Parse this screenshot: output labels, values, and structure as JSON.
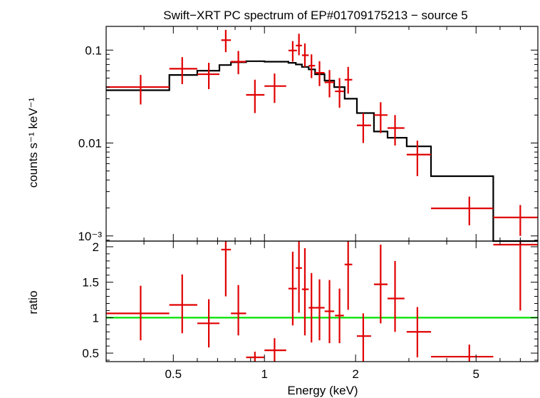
{
  "chart_data": [
    {
      "type": "scatter",
      "title": "Swift−XRT PC spectrum of EP#01709175213 − source 5",
      "xlabel": "Energy (keV)",
      "ylabel": "counts s⁻¹ keV⁻¹",
      "xscale": "log",
      "yscale": "log",
      "xlim": [
        0.3,
        8.0
      ],
      "ylim": [
        0.00088,
        0.18
      ],
      "yticks": [
        {
          "value": 0.1,
          "label": "0.1"
        },
        {
          "value": 0.01,
          "label": "0.01"
        },
        {
          "value": 0.001,
          "label": "10⁻³"
        }
      ],
      "series": [
        {
          "name": "data",
          "color": "#e00000",
          "points": [
            {
              "x": 0.39,
              "xlo": 0.3,
              "xhi": 0.485,
              "y": 0.04,
              "ylo": 0.026,
              "yhi": 0.054
            },
            {
              "x": 0.535,
              "xlo": 0.485,
              "xhi": 0.6,
              "y": 0.063,
              "ylo": 0.043,
              "yhi": 0.084
            },
            {
              "x": 0.655,
              "xlo": 0.6,
              "xhi": 0.71,
              "y": 0.055,
              "ylo": 0.038,
              "yhi": 0.073
            },
            {
              "x": 0.745,
              "xlo": 0.72,
              "xhi": 0.775,
              "y": 0.128,
              "ylo": 0.095,
              "yhi": 0.165
            },
            {
              "x": 0.82,
              "xlo": 0.775,
              "xhi": 0.87,
              "y": 0.075,
              "ylo": 0.055,
              "yhi": 0.098
            },
            {
              "x": 0.93,
              "xlo": 0.87,
              "xhi": 1.0,
              "y": 0.033,
              "ylo": 0.021,
              "yhi": 0.048
            },
            {
              "x": 1.08,
              "xlo": 1.0,
              "xhi": 1.18,
              "y": 0.041,
              "ylo": 0.027,
              "yhi": 0.056
            },
            {
              "x": 1.24,
              "xlo": 1.2,
              "xhi": 1.28,
              "y": 0.099,
              "ylo": 0.075,
              "yhi": 0.125
            },
            {
              "x": 1.3,
              "xlo": 1.27,
              "xhi": 1.33,
              "y": 0.112,
              "ylo": 0.088,
              "yhi": 0.15
            },
            {
              "x": 1.36,
              "xlo": 1.33,
              "xhi": 1.4,
              "y": 0.088,
              "ylo": 0.066,
              "yhi": 0.118
            },
            {
              "x": 1.43,
              "xlo": 1.4,
              "xhi": 1.47,
              "y": 0.068,
              "ylo": 0.05,
              "yhi": 0.09
            },
            {
              "x": 1.52,
              "xlo": 1.47,
              "xhi": 1.58,
              "y": 0.057,
              "ylo": 0.041,
              "yhi": 0.076
            },
            {
              "x": 1.64,
              "xlo": 1.58,
              "xhi": 1.7,
              "y": 0.045,
              "ylo": 0.031,
              "yhi": 0.061
            },
            {
              "x": 1.77,
              "xlo": 1.71,
              "xhi": 1.83,
              "y": 0.036,
              "ylo": 0.024,
              "yhi": 0.05
            },
            {
              "x": 1.89,
              "xlo": 1.84,
              "xhi": 1.95,
              "y": 0.048,
              "ylo": 0.034,
              "yhi": 0.066
            },
            {
              "x": 2.12,
              "xlo": 2.02,
              "xhi": 2.25,
              "y": 0.0155,
              "ylo": 0.01,
              "yhi": 0.021
            },
            {
              "x": 2.42,
              "xlo": 2.3,
              "xhi": 2.55,
              "y": 0.02,
              "ylo": 0.0128,
              "yhi": 0.0275
            },
            {
              "x": 2.7,
              "xlo": 2.55,
              "xhi": 2.9,
              "y": 0.0145,
              "ylo": 0.0094,
              "yhi": 0.02
            },
            {
              "x": 3.2,
              "xlo": 2.95,
              "xhi": 3.55,
              "y": 0.0075,
              "ylo": 0.0044,
              "yhi": 0.0106
            },
            {
              "x": 4.75,
              "xlo": 3.55,
              "xhi": 5.7,
              "y": 0.00198,
              "ylo": 0.0013,
              "yhi": 0.00265
            },
            {
              "x": 7.0,
              "xlo": 5.7,
              "xhi": 8.0,
              "y": 0.00158,
              "ylo": 0.001,
              "yhi": 0.00215
            }
          ]
        },
        {
          "name": "model",
          "color": "#000000",
          "step": true,
          "edges": [
            0.3,
            0.485,
            0.6,
            0.71,
            0.775,
            0.87,
            1.0,
            1.2,
            1.27,
            1.33,
            1.4,
            1.47,
            1.58,
            1.7,
            1.84,
            2.02,
            2.3,
            2.55,
            2.95,
            3.55,
            5.7,
            8.0
          ],
          "values": [
            0.037,
            0.054,
            0.06,
            0.069,
            0.074,
            0.076,
            0.075,
            0.073,
            0.07,
            0.066,
            0.062,
            0.055,
            0.047,
            0.04,
            0.03,
            0.021,
            0.0133,
            0.0114,
            0.0092,
            0.0044,
            0.00085
          ]
        }
      ]
    },
    {
      "type": "scatter",
      "title": "",
      "xlabel": "Energy (keV)",
      "ylabel": "ratio",
      "xscale": "log",
      "yscale": "linear",
      "xlim": [
        0.3,
        8.0
      ],
      "ylim": [
        0.38,
        2.08
      ],
      "yticks": [
        {
          "value": 0.5,
          "label": "0.5"
        },
        {
          "value": 1,
          "label": "1"
        },
        {
          "value": 1.5,
          "label": "1.5"
        },
        {
          "value": 2,
          "label": "2"
        }
      ],
      "xticks": [
        {
          "value": 0.5,
          "label": "0.5"
        },
        {
          "value": 1,
          "label": "1"
        },
        {
          "value": 2,
          "label": "2"
        },
        {
          "value": 5,
          "label": "5"
        }
      ],
      "reference_line": {
        "y": 1,
        "color": "#00e000"
      },
      "series": [
        {
          "name": "ratio",
          "color": "#e00000",
          "points": [
            {
              "x": 0.39,
              "xlo": 0.3,
              "xhi": 0.485,
              "y": 1.06,
              "ylo": 0.68,
              "yhi": 1.45
            },
            {
              "x": 0.535,
              "xlo": 0.485,
              "xhi": 0.6,
              "y": 1.18,
              "ylo": 0.78,
              "yhi": 1.61
            },
            {
              "x": 0.655,
              "xlo": 0.6,
              "xhi": 0.71,
              "y": 0.92,
              "ylo": 0.58,
              "yhi": 1.26
            },
            {
              "x": 0.745,
              "xlo": 0.72,
              "xhi": 0.775,
              "y": 1.96,
              "ylo": 1.3,
              "yhi": 2.08
            },
            {
              "x": 0.82,
              "xlo": 0.775,
              "xhi": 0.87,
              "y": 1.06,
              "ylo": 0.75,
              "yhi": 1.46
            },
            {
              "x": 0.93,
              "xlo": 0.87,
              "xhi": 1.0,
              "y": 0.44,
              "ylo": 0.38,
              "yhi": 0.52
            },
            {
              "x": 1.08,
              "xlo": 1.0,
              "xhi": 1.18,
              "y": 0.54,
              "ylo": 0.38,
              "yhi": 0.71
            },
            {
              "x": 1.24,
              "xlo": 1.2,
              "xhi": 1.28,
              "y": 1.41,
              "ylo": 0.89,
              "yhi": 1.93
            },
            {
              "x": 1.3,
              "xlo": 1.27,
              "xhi": 1.33,
              "y": 1.7,
              "ylo": 1.07,
              "yhi": 2.08
            },
            {
              "x": 1.36,
              "xlo": 1.33,
              "xhi": 1.4,
              "y": 1.4,
              "ylo": 0.75,
              "yhi": 1.98
            },
            {
              "x": 1.43,
              "xlo": 1.4,
              "xhi": 1.47,
              "y": 1.14,
              "ylo": 0.65,
              "yhi": 1.63
            },
            {
              "x": 1.52,
              "xlo": 1.47,
              "xhi": 1.58,
              "y": 1.14,
              "ylo": 0.68,
              "yhi": 1.54
            },
            {
              "x": 1.64,
              "xlo": 1.58,
              "xhi": 1.7,
              "y": 1.09,
              "ylo": 0.64,
              "yhi": 1.53
            },
            {
              "x": 1.77,
              "xlo": 1.71,
              "xhi": 1.83,
              "y": 1.03,
              "ylo": 0.64,
              "yhi": 1.41
            },
            {
              "x": 1.89,
              "xlo": 1.84,
              "xhi": 1.95,
              "y": 1.75,
              "ylo": 1.11,
              "yhi": 2.08
            },
            {
              "x": 2.12,
              "xlo": 2.02,
              "xhi": 2.25,
              "y": 0.74,
              "ylo": 0.38,
              "yhi": 1.06
            },
            {
              "x": 2.42,
              "xlo": 2.3,
              "xhi": 2.55,
              "y": 1.47,
              "ylo": 0.92,
              "yhi": 2.03
            },
            {
              "x": 2.7,
              "xlo": 2.55,
              "xhi": 2.9,
              "y": 1.27,
              "ylo": 0.8,
              "yhi": 1.8
            },
            {
              "x": 3.2,
              "xlo": 2.95,
              "xhi": 3.55,
              "y": 0.8,
              "ylo": 0.44,
              "yhi": 1.15
            },
            {
              "x": 4.75,
              "xlo": 3.55,
              "xhi": 5.7,
              "y": 0.45,
              "ylo": 0.38,
              "yhi": 0.62
            },
            {
              "x": 7.0,
              "xlo": 5.7,
              "xhi": 8.0,
              "y": 2.03,
              "ylo": 1.1,
              "yhi": 2.08
            }
          ]
        }
      ]
    }
  ]
}
